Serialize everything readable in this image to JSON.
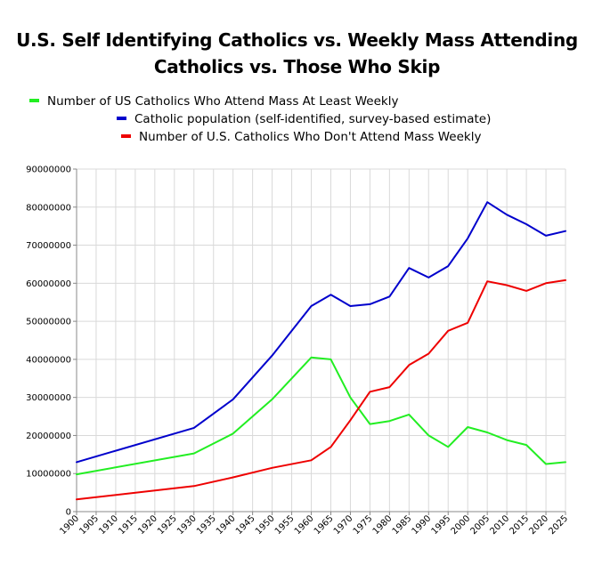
{
  "title": {
    "line1": "U.S. Self Identifying Catholics vs. Weekly Mass Attending",
    "line2": "Catholics vs. Those Who Skip"
  },
  "legend": [
    {
      "label": "Number of US Catholics Who Attend Mass At Least Weekly",
      "color": "#22ee22"
    },
    {
      "label": "Catholic population (self-identified, survey-based estimate)",
      "color": "#0000cc"
    },
    {
      "label": "Number of U.S. Catholics Who Don't Attend Mass Weekly",
      "color": "#ee0000"
    }
  ],
  "chart_data": {
    "type": "line",
    "title": "U.S. Self Identifying Catholics vs. Weekly Mass Attending Catholics vs. Those Who Skip",
    "xlabel": "",
    "ylabel": "",
    "x": [
      1900,
      1905,
      1910,
      1915,
      1920,
      1925,
      1930,
      1935,
      1940,
      1945,
      1950,
      1955,
      1960,
      1965,
      1970,
      1975,
      1980,
      1985,
      1990,
      1995,
      2000,
      2005,
      2010,
      2015,
      2020,
      2025
    ],
    "ylim": [
      0,
      90000000
    ],
    "yticks": [
      0,
      10000000,
      20000000,
      30000000,
      40000000,
      50000000,
      60000000,
      70000000,
      80000000,
      90000000
    ],
    "grid": true,
    "legend_position": "top",
    "series": [
      {
        "name": "Number of US Catholics Who Attend Mass At Least Weekly",
        "color": "#22ee22",
        "x": [
          1900,
          1930,
          1940,
          1950,
          1960,
          1965,
          1970,
          1975,
          1980,
          1985,
          1990,
          1995,
          2000,
          2005,
          2010,
          2015,
          2020,
          2025
        ],
        "values": [
          9800000,
          15300000,
          20500000,
          29500000,
          40500000,
          40000000,
          30000000,
          23000000,
          23800000,
          25500000,
          20000000,
          17000000,
          22200000,
          20800000,
          18800000,
          17500000,
          12500000,
          13000000
        ]
      },
      {
        "name": "Catholic population (self-identified, survey-based estimate)",
        "color": "#0000cc",
        "x": [
          1900,
          1930,
          1940,
          1950,
          1960,
          1965,
          1970,
          1975,
          1980,
          1985,
          1990,
          1995,
          2000,
          2005,
          2010,
          2015,
          2020,
          2025
        ],
        "values": [
          13000000,
          22000000,
          29500000,
          41000000,
          54000000,
          57000000,
          54000000,
          54500000,
          56500000,
          64000000,
          61500000,
          64500000,
          71800000,
          81300000,
          78000000,
          75500000,
          72500000,
          73700000
        ]
      },
      {
        "name": "Number of U.S. Catholics Who Don't Attend Mass Weekly",
        "color": "#ee0000",
        "x": [
          1900,
          1930,
          1940,
          1950,
          1960,
          1965,
          1970,
          1975,
          1980,
          1985,
          1990,
          1995,
          2000,
          2005,
          2010,
          2015,
          2020,
          2025
        ],
        "values": [
          3200000,
          6700000,
          9000000,
          11500000,
          13500000,
          17000000,
          24000000,
          31500000,
          32700000,
          38500000,
          41500000,
          47500000,
          49600000,
          60500000,
          59500000,
          58000000,
          60000000,
          60800000
        ]
      }
    ]
  }
}
